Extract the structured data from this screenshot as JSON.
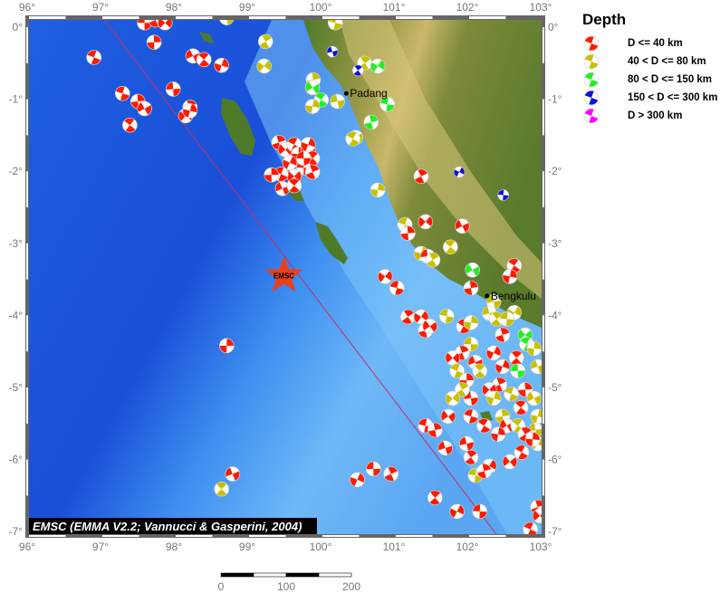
{
  "map": {
    "lon_range": [
      96,
      103
    ],
    "lat_range": [
      -7,
      0
    ],
    "lon_ticks": [
      "96°",
      "97°",
      "98°",
      "99°",
      "100°",
      "101°",
      "102°",
      "103°"
    ],
    "lat_ticks": [
      "0°",
      "-1°",
      "-2°",
      "-3°",
      "-4°",
      "-5°",
      "-6°",
      "-7°"
    ],
    "credit": "EMSC (EMMA V2.2; Vannucci & Gasperini, 2004)",
    "marker": {
      "label": "EMSC",
      "lon": 99.5,
      "lat": -3.45,
      "color": "#e8401c"
    },
    "towns": [
      {
        "name": "Padang",
        "lon": 100.35,
        "lat": -0.92
      },
      {
        "name": "Bengkulu",
        "lon": 102.27,
        "lat": -3.73
      }
    ]
  },
  "legend": {
    "title": "Depth",
    "items": [
      {
        "label": "D <= 40 km",
        "color": "#ff1a00"
      },
      {
        "label": "40 < D <= 80 km",
        "color": "#c8c000"
      },
      {
        "label": "80 < D <= 150 km",
        "color": "#22ee22"
      },
      {
        "label": "150 < D <= 300 km",
        "color": "#1010dd"
      },
      {
        "label": "D > 300 km",
        "color": "#ff00ff"
      }
    ]
  },
  "scale_bar": {
    "labels": [
      "0",
      "100",
      "200"
    ]
  },
  "events": [
    [
      97.6,
      0.06,
      0
    ],
    [
      97.75,
      0.1,
      0
    ],
    [
      97.88,
      0.06,
      0
    ],
    [
      96.91,
      -0.42,
      0
    ],
    [
      97.73,
      -0.21,
      0
    ],
    [
      98.26,
      -0.4,
      0
    ],
    [
      98.41,
      -0.45,
      0
    ],
    [
      98.65,
      -0.53,
      0
    ],
    [
      97.99,
      -0.86,
      0
    ],
    [
      98.22,
      -1.11,
      0
    ],
    [
      98.16,
      -1.23,
      0
    ],
    [
      97.3,
      -0.92,
      0
    ],
    [
      97.51,
      -1.03,
      0
    ],
    [
      97.6,
      -1.13,
      0
    ],
    [
      97.4,
      -1.36,
      0
    ],
    [
      98.22,
      -1.16,
      0
    ],
    [
      98.72,
      0.13,
      1
    ],
    [
      99.25,
      -0.2,
      1
    ],
    [
      99.23,
      -0.54,
      1
    ],
    [
      100.2,
      0.06,
      1
    ],
    [
      99.9,
      -0.73,
      1
    ],
    [
      99.89,
      -0.84,
      2
    ],
    [
      100.01,
      -1.01,
      2
    ],
    [
      99.89,
      -1.1,
      1
    ],
    [
      100.23,
      -1.03,
      1
    ],
    [
      100.6,
      -0.5,
      1
    ],
    [
      100.78,
      -0.54,
      2
    ],
    [
      100.91,
      -1.07,
      2
    ],
    [
      100.69,
      -1.32,
      2
    ],
    [
      100.48,
      -1.53,
      1
    ],
    [
      100.44,
      -1.55,
      1
    ],
    [
      100.78,
      -2.26,
      1
    ],
    [
      100.16,
      -0.34,
      3
    ],
    [
      100.51,
      -0.6,
      3
    ],
    [
      101.89,
      -2.01,
      3
    ],
    [
      102.49,
      -2.33,
      3
    ],
    [
      99.43,
      -1.6,
      0
    ],
    [
      99.52,
      -1.7,
      0
    ],
    [
      99.64,
      -1.63,
      0
    ],
    [
      99.7,
      -1.76,
      0
    ],
    [
      99.83,
      -1.7,
      0
    ],
    [
      99.89,
      -1.82,
      0
    ],
    [
      99.58,
      -1.88,
      0
    ],
    [
      99.77,
      -1.95,
      0
    ],
    [
      99.89,
      -2.01,
      0
    ],
    [
      99.64,
      -2.07,
      0
    ],
    [
      99.46,
      -2.04,
      0
    ],
    [
      99.33,
      -2.05,
      0
    ],
    [
      99.48,
      -2.24,
      0
    ],
    [
      99.64,
      -2.2,
      0
    ],
    [
      99.83,
      -1.63,
      0
    ],
    [
      99.77,
      -1.82,
      0
    ],
    [
      101.37,
      -2.07,
      0
    ],
    [
      101.43,
      -2.7,
      0
    ],
    [
      101.15,
      -2.74,
      1
    ],
    [
      101.19,
      -2.86,
      0
    ],
    [
      101.93,
      -2.76,
      0
    ],
    [
      101.77,
      -3.05,
      1
    ],
    [
      101.37,
      -3.14,
      1
    ],
    [
      101.46,
      -3.18,
      0
    ],
    [
      101.53,
      -3.23,
      1
    ],
    [
      100.88,
      -3.46,
      0
    ],
    [
      101.04,
      -3.62,
      0
    ],
    [
      102.05,
      -3.62,
      0
    ],
    [
      102.07,
      -3.37,
      2
    ],
    [
      102.64,
      -3.31,
      0
    ],
    [
      102.58,
      -3.46,
      0
    ],
    [
      102.36,
      -3.81,
      1
    ],
    [
      101.19,
      -4.02,
      0
    ],
    [
      101.37,
      -4.02,
      0
    ],
    [
      101.72,
      -4.01,
      1
    ],
    [
      101.43,
      -4.21,
      0
    ],
    [
      101.49,
      -4.15,
      0
    ],
    [
      101.95,
      -4.15,
      0
    ],
    [
      102.05,
      -4.1,
      1
    ],
    [
      102.3,
      -3.97,
      1
    ],
    [
      102.4,
      -4.05,
      1
    ],
    [
      102.64,
      -3.96,
      1
    ],
    [
      102.54,
      -4.05,
      1
    ],
    [
      102.48,
      -4.27,
      0
    ],
    [
      102.79,
      -4.27,
      2
    ],
    [
      102.81,
      -4.4,
      2
    ],
    [
      102.91,
      -4.46,
      1
    ],
    [
      102.96,
      -4.71,
      1
    ],
    [
      102.67,
      -4.59,
      0
    ],
    [
      102.36,
      -4.52,
      0
    ],
    [
      102.05,
      -4.4,
      1
    ],
    [
      101.93,
      -4.52,
      0
    ],
    [
      101.8,
      -4.59,
      0
    ],
    [
      101.86,
      -4.77,
      1
    ],
    [
      101.99,
      -4.9,
      0
    ],
    [
      102.11,
      -4.65,
      0
    ],
    [
      102.17,
      -4.77,
      1
    ],
    [
      102.48,
      -4.71,
      0
    ],
    [
      102.69,
      -4.77,
      2
    ],
    [
      102.44,
      -4.96,
      0
    ],
    [
      102.3,
      -5.03,
      0
    ],
    [
      102.6,
      -5.09,
      1
    ],
    [
      102.79,
      -5.03,
      0
    ],
    [
      102.91,
      -5.15,
      1
    ],
    [
      102.73,
      -5.28,
      0
    ],
    [
      102.36,
      -5.15,
      1
    ],
    [
      102.05,
      -5.15,
      0
    ],
    [
      101.93,
      -5.03,
      1
    ],
    [
      101.8,
      -5.15,
      1
    ],
    [
      102.05,
      -5.4,
      0
    ],
    [
      102.48,
      -5.4,
      1
    ],
    [
      102.54,
      -5.53,
      0
    ],
    [
      102.69,
      -5.53,
      1
    ],
    [
      102.96,
      -5.4,
      1
    ],
    [
      102.93,
      -5.59,
      1
    ],
    [
      102.79,
      -5.65,
      0
    ],
    [
      102.96,
      -5.78,
      1
    ],
    [
      101.43,
      -5.53,
      0
    ],
    [
      101.56,
      -5.59,
      0
    ],
    [
      101.74,
      -5.4,
      0
    ],
    [
      102.23,
      -5.53,
      0
    ],
    [
      102.42,
      -5.65,
      0
    ],
    [
      101.99,
      -5.78,
      0
    ],
    [
      102.05,
      -5.97,
      0
    ],
    [
      102.3,
      -6.09,
      0
    ],
    [
      102.11,
      -6.22,
      1
    ],
    [
      102.23,
      -6.16,
      0
    ],
    [
      102.58,
      -6.03,
      0
    ],
    [
      102.74,
      -5.9,
      0
    ],
    [
      102.89,
      -5.72,
      0
    ],
    [
      101.7,
      -5.84,
      0
    ],
    [
      101.56,
      -6.53,
      0
    ],
    [
      101.86,
      -6.72,
      0
    ],
    [
      102.17,
      -6.72,
      0
    ],
    [
      102.96,
      -6.66,
      0
    ],
    [
      102.99,
      -6.78,
      0
    ],
    [
      102.86,
      -6.97,
      0
    ],
    [
      98.72,
      -4.42,
      0
    ],
    [
      98.8,
      -6.2,
      0
    ],
    [
      98.65,
      -6.41,
      1
    ],
    [
      100.5,
      -6.28,
      0
    ],
    [
      100.72,
      -6.13,
      0
    ],
    [
      100.96,
      -6.2,
      0
    ]
  ]
}
